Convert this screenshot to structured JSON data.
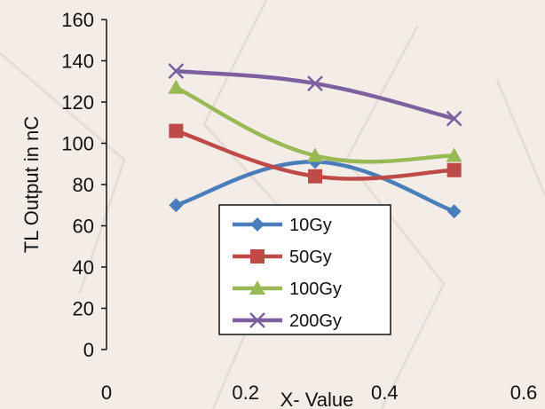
{
  "chart_data": {
    "type": "line",
    "title": "",
    "xlabel": "X- Value",
    "ylabel": "TL Output in nC",
    "xlim": [
      0,
      0.6
    ],
    "ylim": [
      0,
      160
    ],
    "xticks": [
      "0",
      "0.2",
      "0.4",
      "0.6"
    ],
    "yticks": [
      "0",
      "20",
      "40",
      "60",
      "80",
      "100",
      "120",
      "140",
      "160"
    ],
    "grid": false,
    "smooth": true,
    "legend_position": "center-bottom",
    "series": [
      {
        "name": "10Gy",
        "color": "#4a7ebb",
        "marker": "diamond",
        "x": [
          0.1,
          0.3,
          0.5
        ],
        "y": [
          70,
          91,
          67
        ]
      },
      {
        "name": "50Gy",
        "color": "#be4b48",
        "marker": "square",
        "x": [
          0.1,
          0.3,
          0.5
        ],
        "y": [
          106,
          84,
          87
        ]
      },
      {
        "name": "100Gy",
        "color": "#98b954",
        "marker": "triangle",
        "x": [
          0.1,
          0.3,
          0.5
        ],
        "y": [
          127,
          94,
          94
        ]
      },
      {
        "name": "200Gy",
        "color": "#7d60a0",
        "marker": "x",
        "x": [
          0.1,
          0.3,
          0.5
        ],
        "y": [
          135,
          129,
          112
        ]
      }
    ]
  }
}
